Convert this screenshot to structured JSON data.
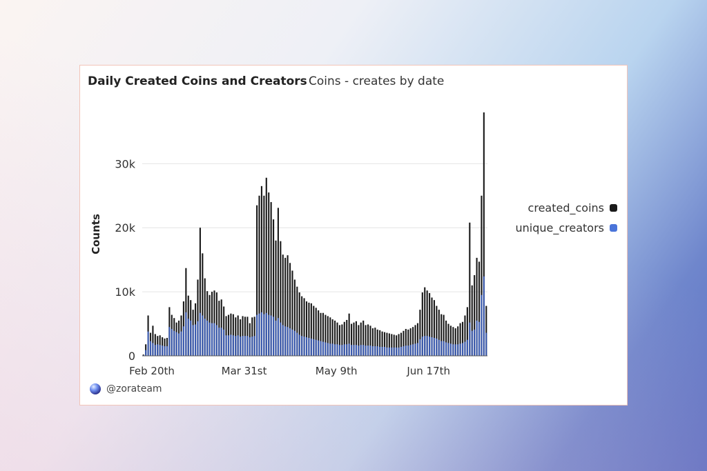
{
  "title": "Daily Created Coins and Creators",
  "subtitle": "Coins - creates by date",
  "footer_handle": "@zorateam",
  "colors": {
    "created_coins": "#1a1a1a",
    "unique_creators": "#3b5bb0",
    "legend_unique": "#4a74d9",
    "grid": "#e4e4e4"
  },
  "chart_data": {
    "type": "bar",
    "title": "Daily Created Coins and Creators",
    "subtitle": "Coins - creates by date",
    "xlabel": "",
    "ylabel": "Counts",
    "ylim": [
      0,
      38000
    ],
    "yticks": [
      0,
      10000,
      20000,
      30000
    ],
    "ytick_labels": [
      "0",
      "10k",
      "20k",
      "30k"
    ],
    "x_tick_labels": [
      {
        "label": "Feb 20th",
        "index": 0
      },
      {
        "label": "Mar 31st",
        "index": 39
      },
      {
        "label": "May 9th",
        "index": 78
      },
      {
        "label": "Jun 17th",
        "index": 117
      }
    ],
    "grid": true,
    "legend": "right",
    "series": [
      {
        "name": "created_coins",
        "values": [
          200,
          1800,
          6300,
          3600,
          4700,
          3400,
          3100,
          3200,
          2900,
          2700,
          2800,
          7600,
          6400,
          5900,
          5200,
          5500,
          6300,
          8500,
          13700,
          9400,
          8700,
          7200,
          8200,
          11900,
          20000,
          16000,
          12100,
          10100,
          9500,
          10000,
          10200,
          9900,
          8600,
          8800,
          7700,
          6200,
          6400,
          6600,
          6500,
          6000,
          6300,
          5700,
          6200,
          6100,
          6100,
          5100,
          6000,
          6100,
          23500,
          25000,
          26500,
          25000,
          27800,
          25500,
          24000,
          21300,
          18000,
          23100,
          17900,
          15800,
          15300,
          15700,
          14500,
          13300,
          11900,
          10800,
          9900,
          9300,
          9000,
          8500,
          8300,
          8200,
          7800,
          7500,
          7100,
          6700,
          6700,
          6400,
          6200,
          6000,
          5700,
          5500,
          5200,
          4800,
          4900,
          5300,
          5600,
          6600,
          5000,
          5200,
          5400,
          4800,
          5200,
          5500,
          4800,
          4900,
          4700,
          4300,
          4400,
          4100,
          4000,
          3800,
          3700,
          3600,
          3500,
          3400,
          3300,
          3200,
          3400,
          3600,
          3900,
          4200,
          4100,
          4300,
          4500,
          4800,
          5100,
          7200,
          9900,
          10700,
          10200,
          9800,
          9100,
          8700,
          7800,
          7200,
          6500,
          6400,
          5500,
          5000,
          4700,
          4500,
          4300,
          4600,
          5100,
          5300,
          6300,
          7600,
          20800,
          11000,
          12600,
          15300,
          14700,
          25000,
          38000,
          7800
        ]
      },
      {
        "name": "unique_creators",
        "values": [
          100,
          900,
          3800,
          2300,
          2000,
          1700,
          1800,
          1700,
          1600,
          1500,
          1500,
          4500,
          4200,
          3900,
          3700,
          3500,
          3800,
          4600,
          6800,
          5800,
          5500,
          4800,
          4900,
          5400,
          6700,
          6300,
          5800,
          5500,
          5200,
          5100,
          5100,
          4800,
          4400,
          4400,
          4100,
          3200,
          3200,
          3300,
          3200,
          3100,
          3200,
          3000,
          3100,
          3100,
          3100,
          2900,
          3000,
          3100,
          6400,
          6600,
          6800,
          6500,
          6700,
          6400,
          6300,
          6100,
          5500,
          5900,
          5200,
          4800,
          4600,
          4500,
          4300,
          4100,
          3900,
          3600,
          3300,
          3100,
          3000,
          2900,
          2800,
          2700,
          2600,
          2500,
          2400,
          2300,
          2200,
          2100,
          2000,
          1900,
          1900,
          1800,
          1800,
          1700,
          1700,
          1800,
          1800,
          1900,
          1700,
          1700,
          1700,
          1600,
          1700,
          1700,
          1600,
          1600,
          1600,
          1500,
          1500,
          1500,
          1400,
          1400,
          1400,
          1300,
          1300,
          1300,
          1300,
          1300,
          1300,
          1400,
          1500,
          1600,
          1600,
          1700,
          1800,
          1900,
          2000,
          2600,
          3000,
          3100,
          3100,
          3000,
          2900,
          2800,
          2700,
          2500,
          2300,
          2300,
          2100,
          2000,
          1900,
          1800,
          1800,
          1800,
          1900,
          2000,
          2200,
          2500,
          5200,
          3900,
          4100,
          5500,
          5300,
          9500,
          12400,
          3600
        ]
      }
    ]
  }
}
